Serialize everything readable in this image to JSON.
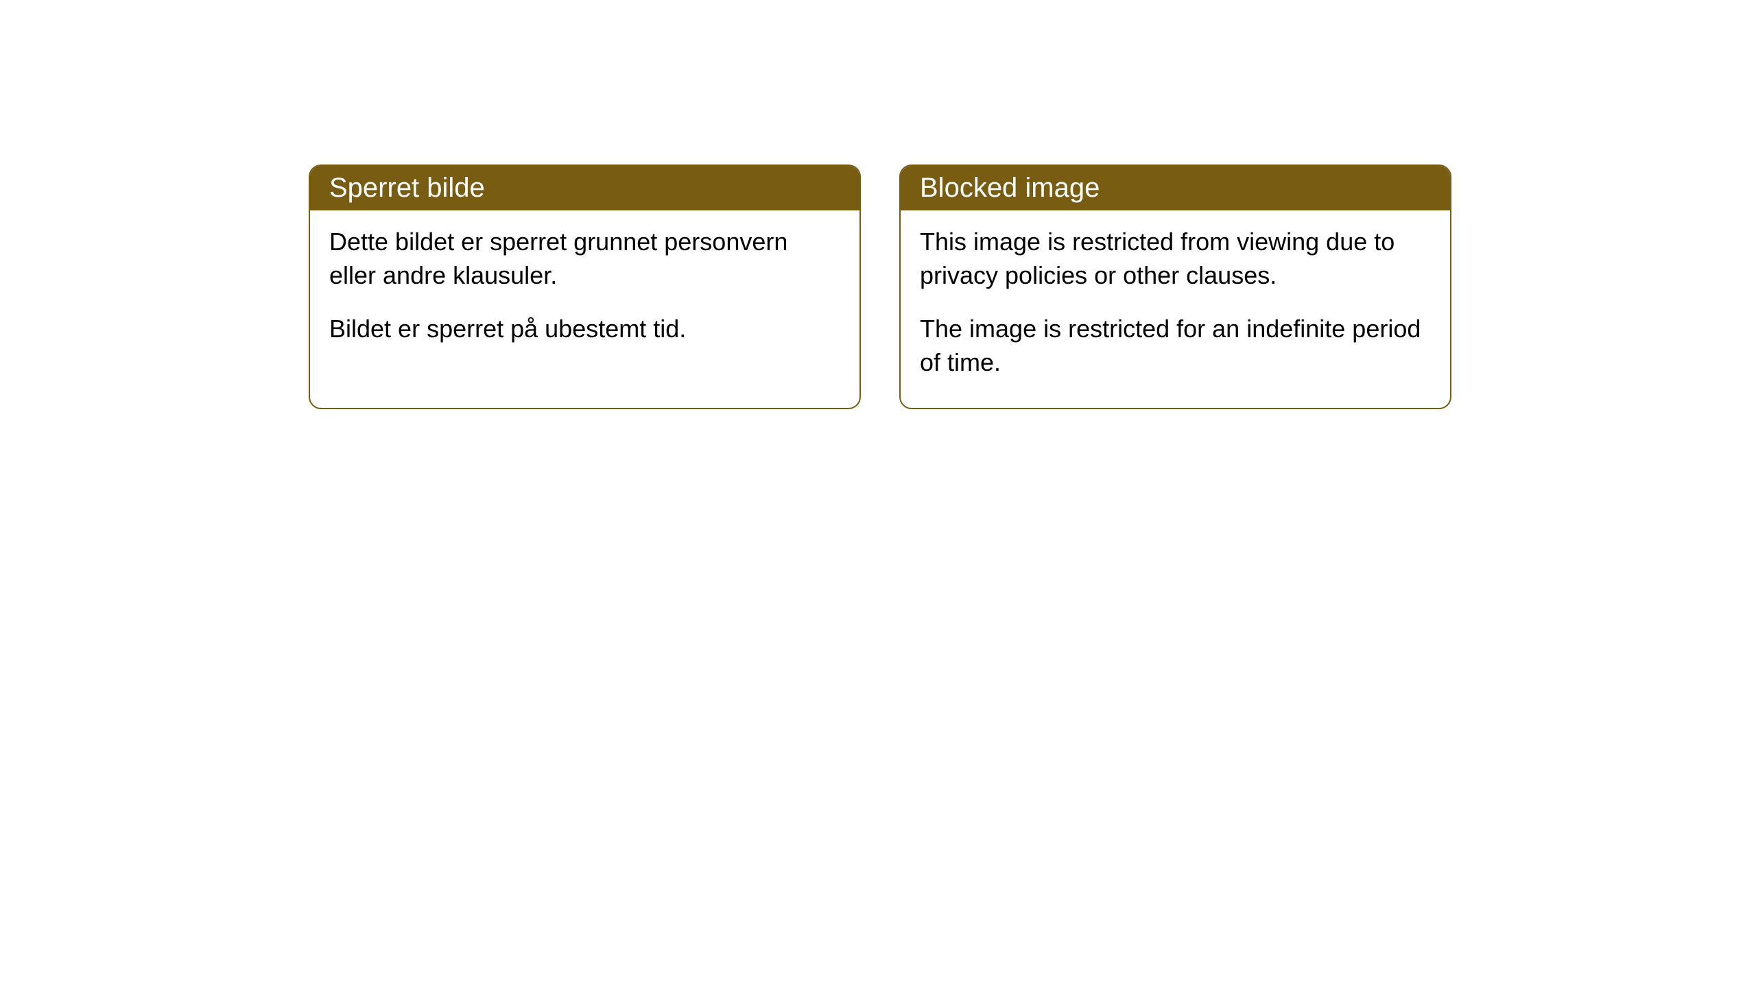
{
  "cards": [
    {
      "title": "Sperret bilde",
      "paragraph1": "Dette bildet er sperret grunnet personvern eller andre klausuler.",
      "paragraph2": "Bildet er sperret på ubestemt tid."
    },
    {
      "title": "Blocked image",
      "paragraph1": "This image is restricted from viewing due to privacy policies or other clauses.",
      "paragraph2": "The image is restricted for an indefinite period of time."
    }
  ],
  "styling": {
    "header_bg_color": "#785c11",
    "header_text_color": "#ffffff",
    "border_color": "#785c11",
    "border_radius": 18,
    "card_bg_color": "#ffffff",
    "body_text_color": "#000000",
    "title_fontsize": 40,
    "body_fontsize": 36
  }
}
